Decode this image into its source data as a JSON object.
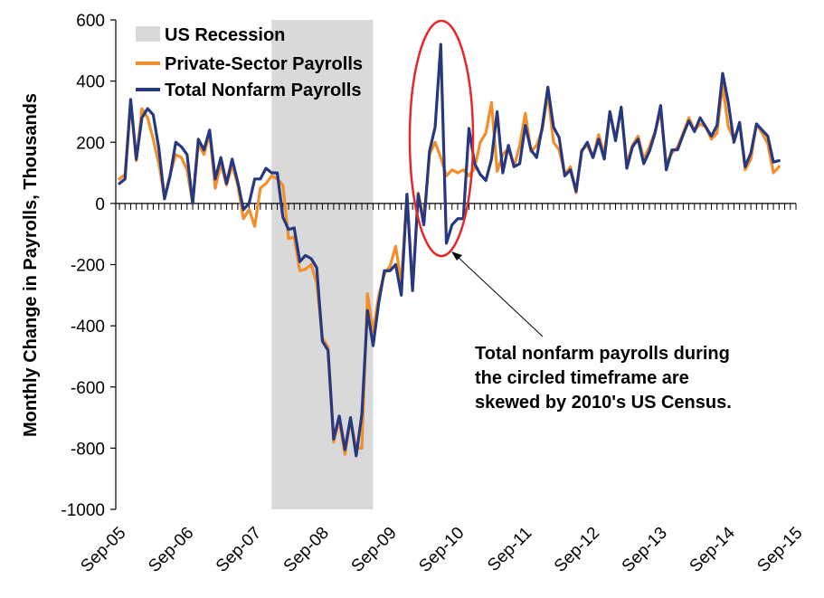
{
  "chart_data": {
    "type": "line",
    "title": "",
    "ylabel": "Monthly Change in Payrolls, Thousands",
    "xlabel": "",
    "ylim": [
      -1000,
      600
    ],
    "yticks": [
      600,
      400,
      200,
      0,
      -200,
      -400,
      -600,
      -800,
      -1000
    ],
    "x_start": "2005-09",
    "x_end": "2015-09",
    "x_tick_labels": [
      "Sep-05",
      "Sep-06",
      "Sep-07",
      "Sep-08",
      "Sep-09",
      "Sep-10",
      "Sep-11",
      "Sep-12",
      "Sep-13",
      "Sep-14",
      "Sep-15"
    ],
    "recession": {
      "name": "US Recession",
      "start": "2007-12",
      "end": "2009-06",
      "color": "#d9d9d9"
    },
    "legend_position": "top-left",
    "series": [
      {
        "name": "Private-Sector Payrolls",
        "color": "#f28e2b",
        "values": [
          80,
          95,
          330,
          140,
          310,
          280,
          210,
          130,
          20,
          95,
          160,
          150,
          110,
          0,
          195,
          160,
          230,
          50,
          130,
          60,
          125,
          60,
          -50,
          -20,
          -75,
          50,
          65,
          90,
          80,
          60,
          -115,
          -110,
          -220,
          -215,
          -200,
          -260,
          -440,
          -470,
          -780,
          -710,
          -820,
          -710,
          -800,
          -800,
          -295,
          -420,
          -300,
          -230,
          -205,
          -140,
          -260,
          30,
          -280,
          35,
          -55,
          160,
          200,
          150,
          90,
          110,
          100,
          110,
          90,
          115,
          200,
          230,
          330,
          105,
          160,
          180,
          120,
          190,
          295,
          170,
          190,
          240,
          360,
          200,
          175,
          95,
          120,
          35,
          175,
          190,
          150,
          225,
          160,
          300,
          210,
          310,
          130,
          190,
          220,
          145,
          185,
          235,
          300,
          130,
          165,
          185,
          230,
          280,
          240,
          260,
          250,
          210,
          230,
          390,
          250,
          210,
          260,
          110,
          145,
          260,
          230,
          195,
          100,
          120
        ]
      },
      {
        "name": "Total Nonfarm Payrolls",
        "color": "#26387f",
        "values": [
          65,
          80,
          340,
          145,
          280,
          310,
          290,
          180,
          15,
          90,
          200,
          185,
          160,
          0,
          210,
          175,
          240,
          80,
          150,
          65,
          145,
          70,
          -20,
          0,
          80,
          80,
          115,
          100,
          100,
          -45,
          -85,
          -80,
          -190,
          -170,
          -180,
          -210,
          -450,
          -480,
          -770,
          -695,
          -805,
          -700,
          -825,
          -690,
          -350,
          -465,
          -325,
          -220,
          -220,
          -200,
          -300,
          30,
          -285,
          30,
          -70,
          170,
          250,
          520,
          -130,
          -70,
          -50,
          -50,
          245,
          130,
          95,
          75,
          145,
          300,
          100,
          190,
          120,
          130,
          255,
          175,
          150,
          250,
          380,
          250,
          215,
          90,
          110,
          40,
          170,
          200,
          150,
          210,
          145,
          300,
          205,
          315,
          115,
          185,
          210,
          130,
          170,
          230,
          320,
          110,
          175,
          175,
          225,
          270,
          235,
          280,
          250,
          220,
          255,
          425,
          330,
          200,
          265,
          120,
          165,
          260,
          240,
          220,
          135,
          140
        ]
      }
    ],
    "annotation": {
      "lines": [
        "Total nonfarm payrolls during",
        "the circled timeframe are",
        "skewed by 2010's US Census."
      ],
      "circle_color": "#e8262a",
      "arrow_color": "#000000"
    }
  }
}
